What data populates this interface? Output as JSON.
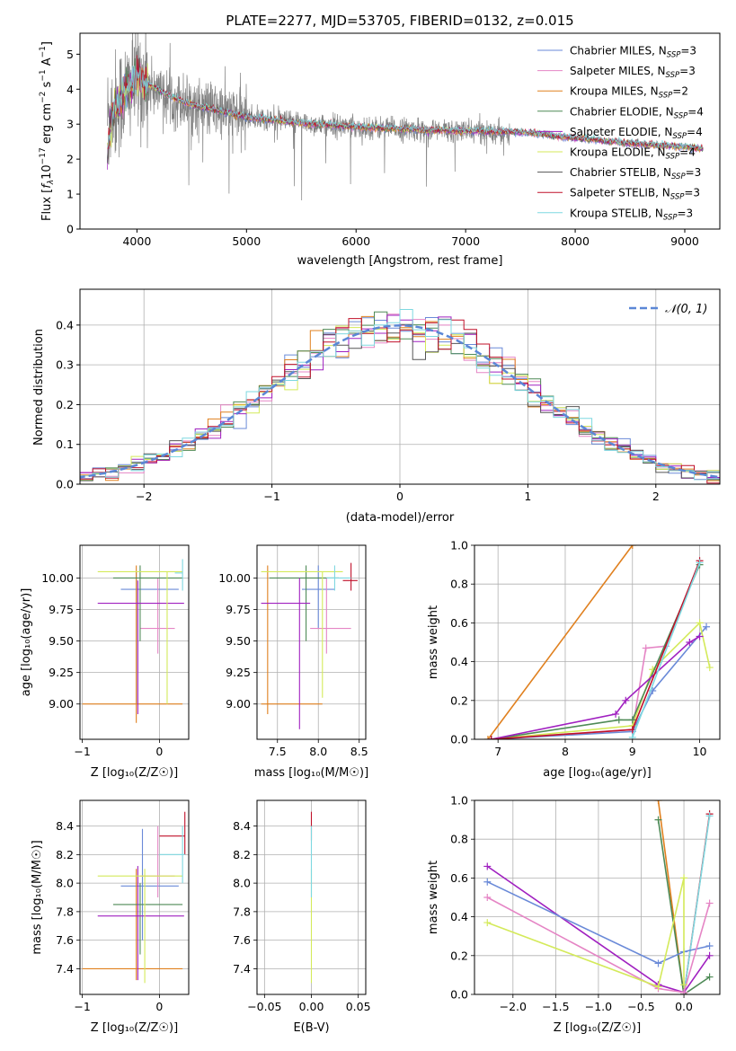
{
  "colors": {
    "Chabrier MILES": "#6a8ad8",
    "Salpeter MILES": "#e585c5",
    "Kroupa MILES": "#e0801f",
    "Chabrier ELODIE": "#4e8a56",
    "Salpeter ELODIE": "#a020c0",
    "Kroupa ELODIE": "#d4ea5a",
    "Chabrier STELIB": "#555555",
    "Salpeter STELIB": "#c0102a",
    "Kroupa STELIB": "#7ed8e0",
    "data": "#808080",
    "normal": "#5b87d6"
  },
  "chart_data": [
    {
      "id": "spectrum",
      "type": "line",
      "title": "PLATE=2277, MJD=53705, FIBERID=0132, z=0.015",
      "xlabel": "wavelength [Angstrom, rest frame]",
      "ylabel": "Flux [f_λ10⁻¹⁷ erg cm⁻² s⁻¹ A⁻¹]",
      "xlim": [
        3480,
        9320
      ],
      "ylim": [
        0,
        5.6
      ],
      "xticks": [
        4000,
        5000,
        6000,
        7000,
        8000,
        9000
      ],
      "yticks": [
        0,
        1,
        2,
        3,
        4,
        5
      ],
      "grid": false,
      "legend": "top-right",
      "data_range": [
        3730,
        9170
      ],
      "model_points": [
        [
          3730,
          3.2
        ],
        [
          3800,
          3.5
        ],
        [
          3900,
          3.9
        ],
        [
          4000,
          4.35
        ],
        [
          4100,
          4.15
        ],
        [
          4300,
          3.8
        ],
        [
          4500,
          3.55
        ],
        [
          4800,
          3.35
        ],
        [
          5000,
          3.2
        ],
        [
          5300,
          3.1
        ],
        [
          5600,
          3.0
        ],
        [
          6000,
          2.92
        ],
        [
          6500,
          2.85
        ],
        [
          7000,
          2.8
        ],
        [
          7500,
          2.78
        ],
        [
          8000,
          2.6
        ],
        [
          8500,
          2.45
        ],
        [
          9000,
          2.35
        ],
        [
          9170,
          2.3
        ]
      ],
      "series": [
        {
          "name": "Chabrier MILES, N",
          "sub": "SSP",
          "suffix": "=3"
        },
        {
          "name": "Salpeter MILES, N",
          "sub": "SSP",
          "suffix": "=3"
        },
        {
          "name": "Kroupa MILES, N",
          "sub": "SSP",
          "suffix": "=2"
        },
        {
          "name": "Chabrier ELODIE, N",
          "sub": "SSP",
          "suffix": "=4"
        },
        {
          "name": "Salpeter ELODIE, N",
          "sub": "SSP",
          "suffix": "=4"
        },
        {
          "name": "Kroupa ELODIE, N",
          "sub": "SSP",
          "suffix": "=4"
        },
        {
          "name": "Chabrier STELIB, N",
          "sub": "SSP",
          "suffix": "=3"
        },
        {
          "name": "Salpeter STELIB, N",
          "sub": "SSP",
          "suffix": "=3"
        },
        {
          "name": "Kroupa STELIB, N",
          "sub": "SSP",
          "suffix": "=3"
        }
      ]
    },
    {
      "id": "residuals",
      "type": "histogram",
      "xlabel": "(data-model)/error",
      "ylabel": "Normed distribution",
      "xlim": [
        -2.5,
        2.5
      ],
      "ylim": [
        0,
        0.49
      ],
      "xticks": [
        -2,
        -1,
        0,
        1,
        2
      ],
      "yticks": [
        0.0,
        0.1,
        0.2,
        0.3,
        0.4
      ],
      "grid": true,
      "legend": "top-right",
      "legend_label": "𝒩(0, 1)",
      "bin_width": 0.1
    },
    {
      "id": "age-vs-Z",
      "type": "errorbar",
      "xlabel": "Z [log₁₀(Z/Z☉)]",
      "ylabel": "age  [log₁₀(age/yr)]",
      "xlim": [
        -1.03,
        0.38
      ],
      "ylim": [
        8.72,
        10.26
      ],
      "xticks": [
        -1,
        0
      ],
      "yticks": [
        9.0,
        9.25,
        9.5,
        9.75,
        10.0
      ],
      "grid": true,
      "segments": [
        {
          "s": "Chabrier MILES",
          "h": [
            -0.5,
            0.25,
            9.91
          ],
          "v": [
            -0.3,
            9.0,
            10.05
          ]
        },
        {
          "s": "Salpeter MILES",
          "h": [
            -0.25,
            0.2,
            9.6
          ],
          "v": [
            -0.02,
            9.4,
            10.0
          ]
        },
        {
          "s": "Kroupa MILES",
          "h": [
            -1.0,
            0.3,
            9.0
          ],
          "v": [
            -0.3,
            8.85,
            10.1
          ]
        },
        {
          "s": "Chabrier ELODIE",
          "h": [
            -0.6,
            0.3,
            10.0
          ],
          "v": [
            -0.25,
            9.5,
            10.1
          ]
        },
        {
          "s": "Salpeter ELODIE",
          "h": [
            -0.8,
            0.32,
            9.8
          ],
          "v": [
            -0.28,
            8.92,
            9.98
          ]
        },
        {
          "s": "Kroupa ELODIE",
          "h": [
            -0.8,
            0.3,
            10.05
          ],
          "v": [
            0.1,
            9.0,
            10.05
          ]
        },
        {
          "s": "Kroupa STELIB",
          "h": [
            0.2,
            0.3,
            10.04
          ],
          "v": [
            0.3,
            9.9,
            10.15
          ]
        }
      ]
    },
    {
      "id": "age-vs-mass",
      "type": "errorbar",
      "xlabel": "mass [log₁₀(M/M☉)]",
      "ylabel": "",
      "xlim": [
        7.25,
        8.58
      ],
      "ylim": [
        8.72,
        10.26
      ],
      "xticks": [
        7.5,
        8.0,
        8.5
      ],
      "yticks": [
        9.0,
        9.25,
        9.5,
        9.75,
        10.0
      ],
      "grid": true,
      "segments": [
        {
          "s": "Chabrier MILES",
          "h": [
            7.8,
            8.2,
            9.91
          ],
          "v": [
            8.0,
            9.6,
            10.1
          ]
        },
        {
          "s": "Salpeter MILES",
          "h": [
            7.9,
            8.4,
            9.6
          ],
          "v": [
            8.1,
            9.4,
            10.0
          ]
        },
        {
          "s": "Kroupa MILES",
          "h": [
            7.3,
            8.05,
            9.0
          ],
          "v": [
            7.38,
            8.92,
            10.1
          ]
        },
        {
          "s": "Chabrier ELODIE",
          "h": [
            7.4,
            8.25,
            10.0
          ],
          "v": [
            7.85,
            9.5,
            10.1
          ]
        },
        {
          "s": "Salpeter ELODIE",
          "h": [
            7.3,
            7.9,
            9.8
          ],
          "v": [
            7.77,
            8.8,
            10.0
          ]
        },
        {
          "s": "Kroupa ELODIE",
          "h": [
            7.3,
            8.3,
            10.05
          ],
          "v": [
            8.05,
            9.05,
            10.05
          ]
        },
        {
          "s": "Salpeter STELIB",
          "h": [
            8.3,
            8.48,
            9.98
          ],
          "v": [
            8.4,
            9.9,
            10.12
          ]
        },
        {
          "s": "Kroupa STELIB",
          "h": [
            8.1,
            8.4,
            10.0
          ],
          "v": [
            8.2,
            9.9,
            10.1
          ]
        }
      ]
    },
    {
      "id": "weight-vs-age",
      "type": "line",
      "xlabel": "age  [log₁₀(age/yr)]",
      "ylabel": "mass weight",
      "xlim": [
        6.65,
        10.3
      ],
      "ylim": [
        0,
        1.0
      ],
      "xticks": [
        7,
        8,
        9,
        10
      ],
      "yticks": [
        0.0,
        0.2,
        0.4,
        0.6,
        0.8,
        1.0
      ],
      "grid": true,
      "series": [
        {
          "s": "Kroupa MILES",
          "points": [
            [
              6.85,
              0
            ],
            [
              9.0,
              1.0
            ]
          ]
        },
        {
          "s": "Chabrier MILES",
          "points": [
            [
              6.9,
              0
            ],
            [
              9.0,
              0.04
            ],
            [
              9.3,
              0.25
            ],
            [
              10.1,
              0.58
            ]
          ]
        },
        {
          "s": "Salpeter MILES",
          "points": [
            [
              6.9,
              0
            ],
            [
              9.0,
              0.05
            ],
            [
              9.2,
              0.47
            ],
            [
              9.5,
              0.48
            ]
          ]
        },
        {
          "s": "Kroupa ELODIE",
          "points": [
            [
              6.9,
              0
            ],
            [
              9.0,
              0.07
            ],
            [
              9.3,
              0.36
            ],
            [
              10.0,
              0.6
            ],
            [
              10.15,
              0.37
            ]
          ]
        },
        {
          "s": "Chabrier ELODIE",
          "points": [
            [
              6.9,
              0
            ],
            [
              8.8,
              0.1
            ],
            [
              9.0,
              0.1
            ],
            [
              10.0,
              0.9
            ]
          ]
        },
        {
          "s": "Salpeter ELODIE",
          "points": [
            [
              6.9,
              0
            ],
            [
              8.75,
              0.13
            ],
            [
              8.9,
              0.2
            ],
            [
              9.85,
              0.5
            ],
            [
              10.0,
              0.53
            ]
          ]
        },
        {
          "s": "Salpeter STELIB",
          "points": [
            [
              6.9,
              0
            ],
            [
              9.0,
              0.05
            ],
            [
              10.0,
              0.92
            ]
          ]
        },
        {
          "s": "Kroupa STELIB",
          "points": [
            [
              9.0,
              0.01
            ],
            [
              10.0,
              0.91
            ]
          ]
        }
      ]
    },
    {
      "id": "mass-vs-Z",
      "type": "errorbar",
      "xlabel": "Z [log₁₀(Z/Z☉)]",
      "ylabel": "mass [log₁₀(M/M☉)]",
      "xlim": [
        -1.03,
        0.38
      ],
      "ylim": [
        7.22,
        8.58
      ],
      "xticks": [
        -1,
        0
      ],
      "yticks": [
        7.4,
        7.6,
        7.8,
        8.0,
        8.2,
        8.4
      ],
      "grid": true,
      "segments": [
        {
          "s": "Chabrier MILES",
          "h": [
            -0.5,
            0.25,
            7.98
          ],
          "v": [
            -0.22,
            7.6,
            8.38
          ]
        },
        {
          "s": "Salpeter MILES",
          "h": [
            -0.25,
            0.2,
            8.05
          ],
          "v": [
            -0.02,
            7.9,
            8.4
          ]
        },
        {
          "s": "Kroupa MILES",
          "h": [
            -1.0,
            0.3,
            7.4
          ],
          "v": [
            -0.3,
            7.32,
            8.1
          ]
        },
        {
          "s": "Chabrier ELODIE",
          "h": [
            -0.6,
            0.3,
            7.85
          ],
          "v": [
            -0.25,
            7.5,
            8.0
          ]
        },
        {
          "s": "Salpeter ELODIE",
          "h": [
            -0.8,
            0.32,
            7.77
          ],
          "v": [
            -0.28,
            7.32,
            8.12
          ]
        },
        {
          "s": "Kroupa ELODIE",
          "h": [
            -0.8,
            0.3,
            8.05
          ],
          "v": [
            -0.19,
            7.3,
            8.1
          ]
        },
        {
          "s": "Salpeter STELIB",
          "h": [
            0.0,
            0.33,
            8.33
          ],
          "v": [
            0.33,
            8.2,
            8.5
          ]
        },
        {
          "s": "Kroupa STELIB",
          "h": [
            0.0,
            0.33,
            8.2
          ],
          "v": [
            0.3,
            8.0,
            8.4
          ]
        }
      ]
    },
    {
      "id": "mass-vs-ebv",
      "type": "errorbar",
      "xlabel": "E(B-V)",
      "ylabel": "",
      "xlim": [
        -0.058,
        0.058
      ],
      "ylim": [
        7.22,
        8.58
      ],
      "xticks": [
        -0.05,
        0.0,
        0.05
      ],
      "yticks": [
        7.4,
        7.6,
        7.8,
        8.0,
        8.2,
        8.4
      ],
      "grid": true,
      "segments": [
        {
          "s": "Kroupa ELODIE",
          "h": null,
          "v": [
            0.0,
            7.3,
            8.1
          ]
        },
        {
          "s": "Salpeter STELIB",
          "h": null,
          "v": [
            0.0,
            8.3,
            8.5
          ]
        },
        {
          "s": "Kroupa STELIB",
          "h": null,
          "v": [
            0.0,
            7.9,
            8.4
          ]
        }
      ]
    },
    {
      "id": "weight-vs-Z",
      "type": "line",
      "xlabel": "Z [log₁₀(Z/Z☉)]",
      "ylabel": "mass weight",
      "xlim": [
        -2.45,
        0.42
      ],
      "ylim": [
        0,
        1.0
      ],
      "xticks": [
        -2.0,
        -1.5,
        -1.0,
        -0.5,
        0.0
      ],
      "yticks": [
        0.0,
        0.2,
        0.4,
        0.6,
        0.8,
        1.0
      ],
      "grid": true,
      "series": [
        {
          "s": "Kroupa MILES",
          "points": [
            [
              -0.3,
              1.0
            ],
            [
              0.0,
              0.0
            ]
          ]
        },
        {
          "s": "Chabrier ELODIE",
          "points": [
            [
              -0.3,
              0.9
            ],
            [
              0.0,
              0.0
            ],
            [
              0.3,
              0.09
            ]
          ]
        },
        {
          "s": "Salpeter STELIB",
          "points": [
            [
              0.0,
              0.0
            ],
            [
              0.3,
              0.93
            ]
          ]
        },
        {
          "s": "Kroupa STELIB",
          "points": [
            [
              0.0,
              0.0
            ],
            [
              0.3,
              0.92
            ]
          ]
        },
        {
          "s": "Salpeter ELODIE",
          "points": [
            [
              -2.3,
              0.66
            ],
            [
              -0.3,
              0.05
            ],
            [
              0.0,
              0.01
            ],
            [
              0.3,
              0.2
            ]
          ]
        },
        {
          "s": "Chabrier MILES",
          "points": [
            [
              -2.3,
              0.58
            ],
            [
              -0.3,
              0.16
            ],
            [
              0.0,
              0.22
            ],
            [
              0.3,
              0.25
            ]
          ]
        },
        {
          "s": "Salpeter MILES",
          "points": [
            [
              -2.3,
              0.5
            ],
            [
              -0.3,
              0.03
            ],
            [
              0.0,
              0.01
            ],
            [
              0.3,
              0.47
            ]
          ]
        },
        {
          "s": "Kroupa ELODIE",
          "points": [
            [
              -2.3,
              0.37
            ],
            [
              -0.3,
              0.04
            ],
            [
              0.0,
              0.6
            ],
            [
              0.0,
              0.05
            ]
          ]
        }
      ]
    }
  ]
}
